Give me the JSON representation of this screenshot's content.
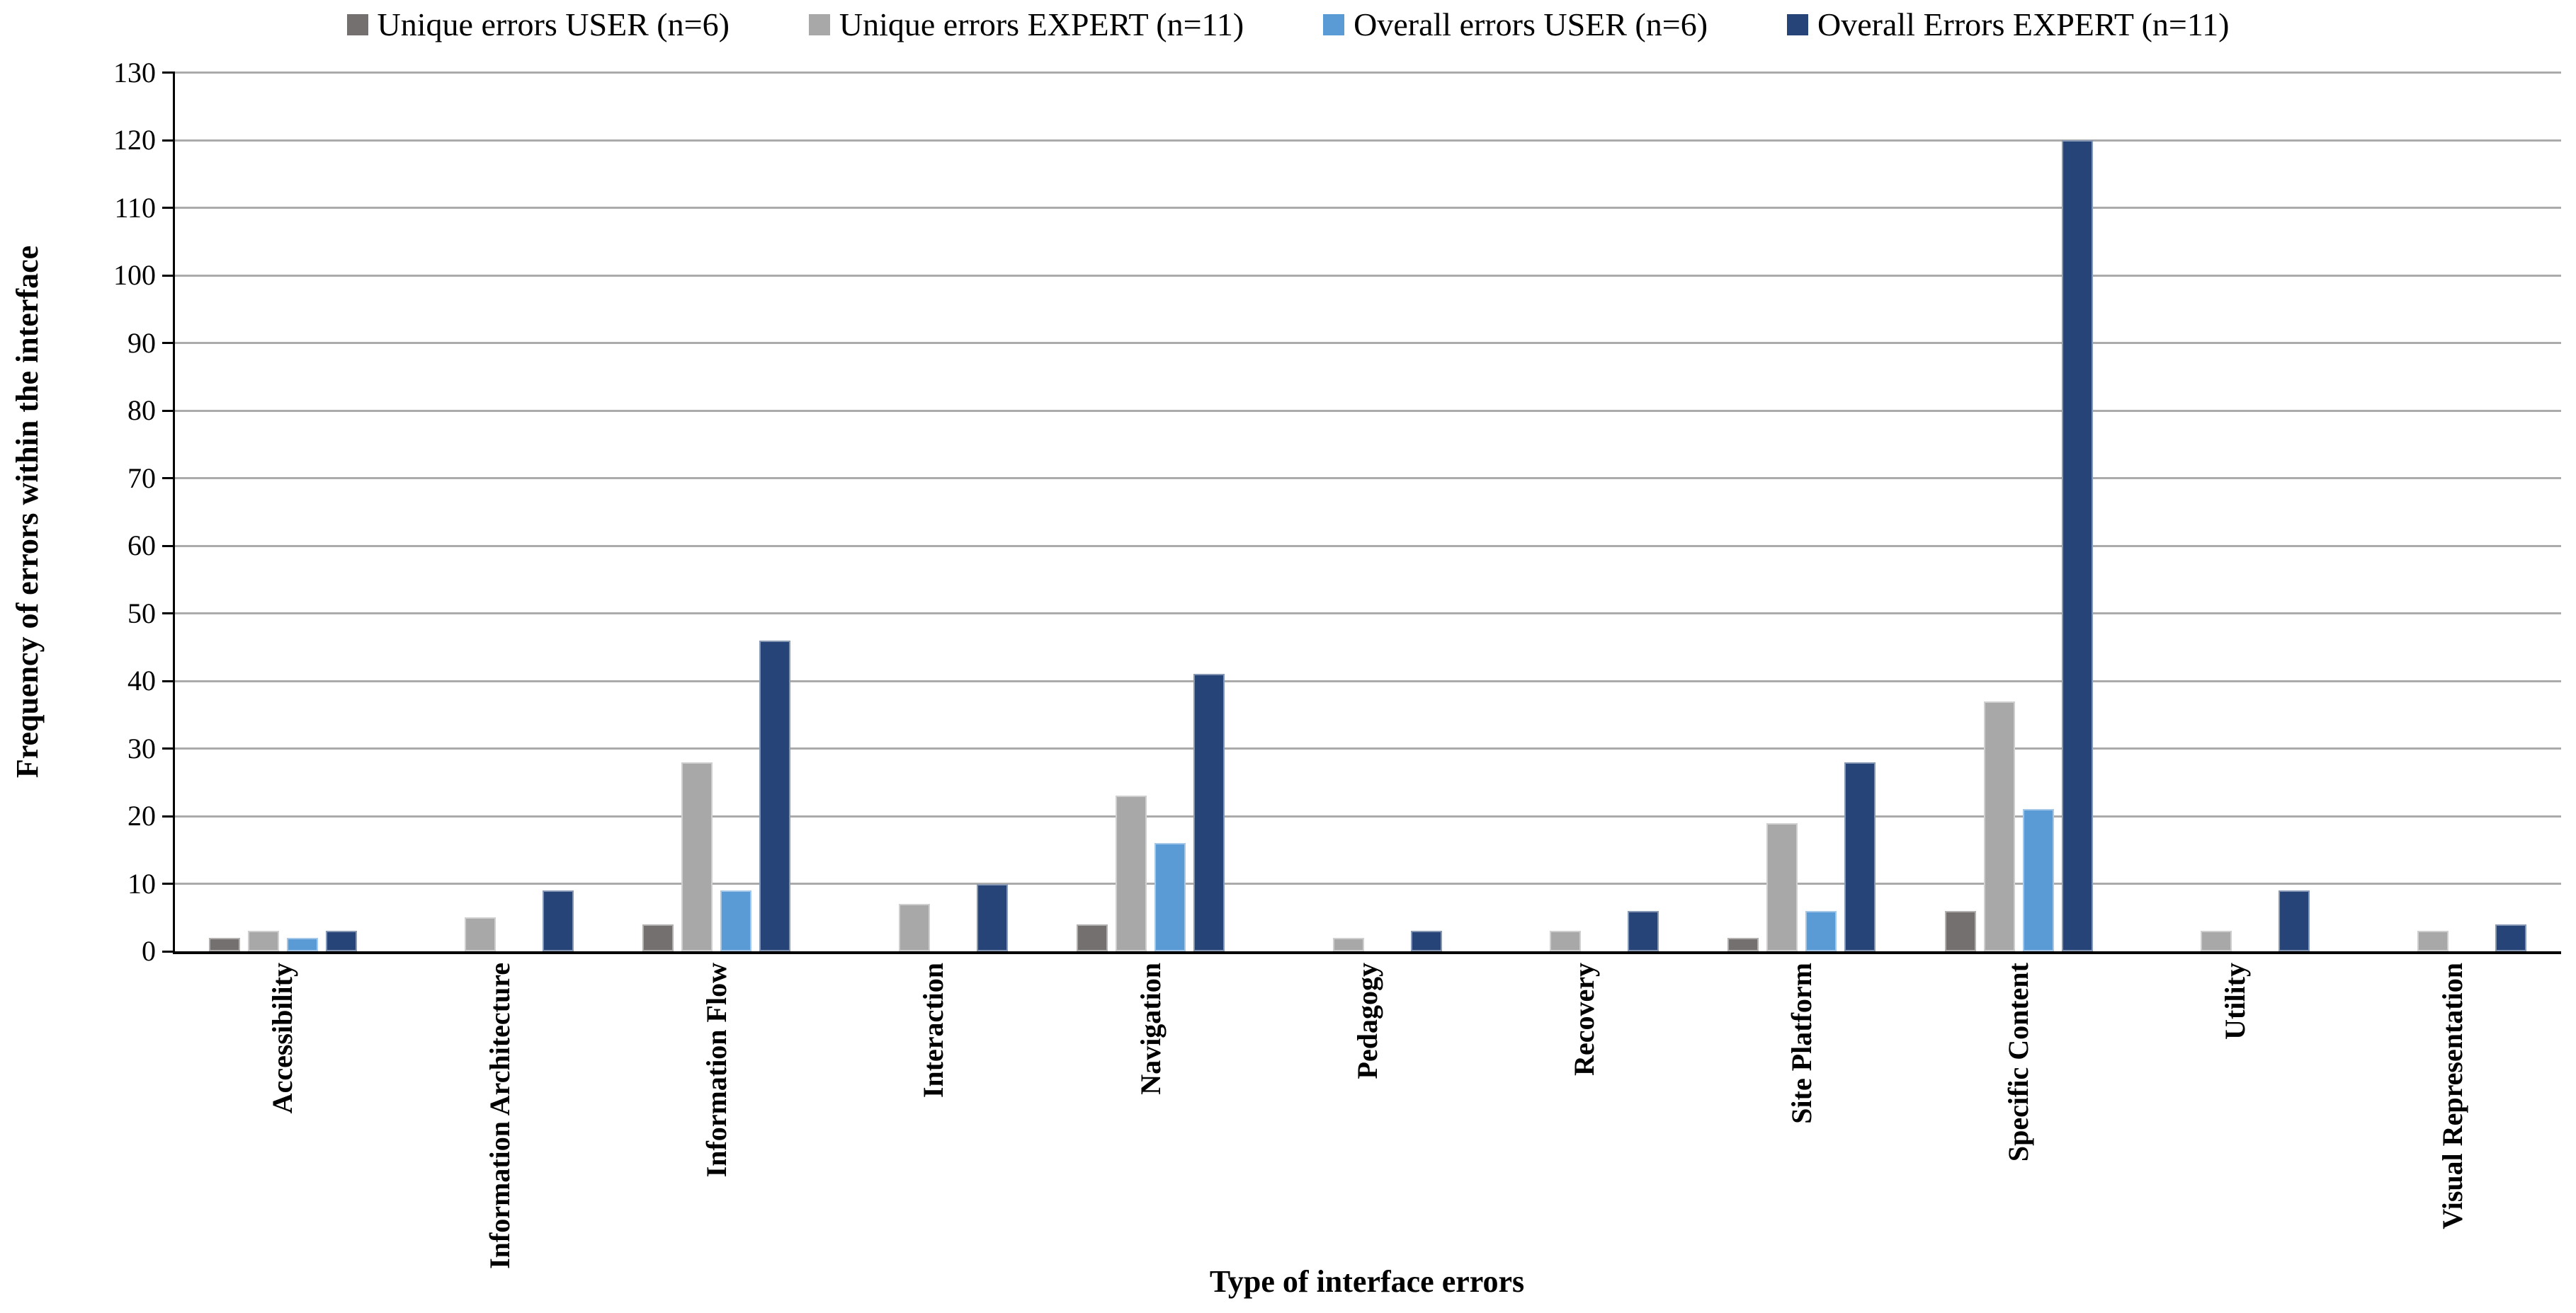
{
  "chart_data": {
    "type": "bar",
    "categories": [
      "Accessibility",
      "Information Architecture",
      "Information Flow",
      "Interaction",
      "Navigation",
      "Pedagogy",
      "Recovery",
      "Site Platform",
      "Specific Content",
      "Utility",
      "Visual Representation"
    ],
    "series": [
      {
        "name": "Unique errors USER (n=6)",
        "color": "#757070",
        "values": [
          2,
          0,
          4,
          0,
          4,
          0,
          0,
          2,
          6,
          0,
          0
        ]
      },
      {
        "name": "Unique errors EXPERT (n=11)",
        "color": "#a8a8a8",
        "values": [
          3,
          5,
          28,
          7,
          23,
          2,
          3,
          19,
          37,
          3,
          3
        ]
      },
      {
        "name": "Overall errors USER (n=6)",
        "color": "#5b9bd5",
        "values": [
          2,
          0,
          9,
          0,
          16,
          0,
          0,
          6,
          21,
          0,
          0
        ]
      },
      {
        "name": "Overall Errors EXPERT (n=11)",
        "color": "#264478",
        "values": [
          3,
          9,
          46,
          10,
          41,
          3,
          6,
          28,
          120,
          9,
          4
        ]
      }
    ],
    "xlabel": "Type of interface errors",
    "ylabel": "Frequency of errors within the interface",
    "ylim": [
      0,
      130
    ],
    "ytick_step": 10,
    "grid": true,
    "legend_position": "top"
  },
  "colors": {
    "axis": "#000000",
    "gridline": "#ababab",
    "text": "#000000",
    "background": "#ffffff"
  }
}
